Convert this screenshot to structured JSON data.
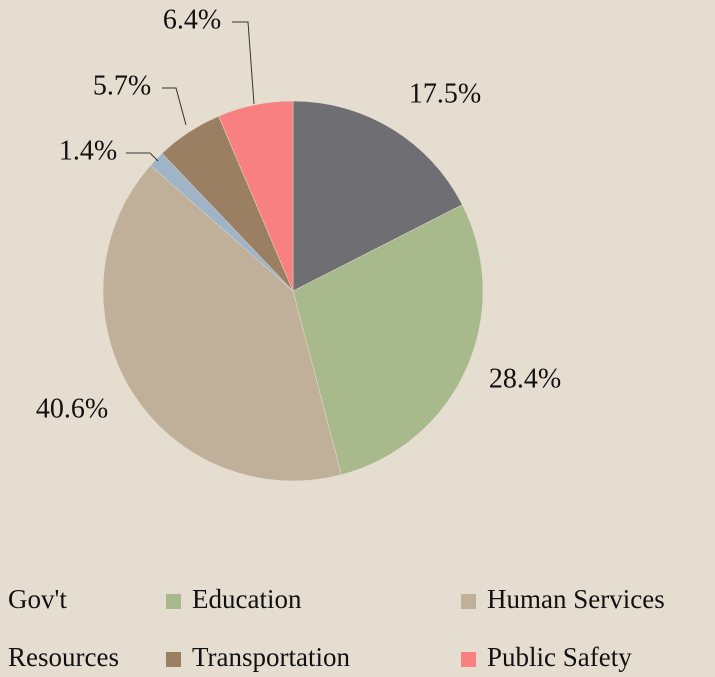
{
  "chart_data": {
    "type": "pie",
    "categories": [
      "Gov't",
      "Education",
      "Human Services",
      "Resources",
      "Transportation",
      "Public Safety"
    ],
    "values": [
      17.5,
      28.4,
      40.6,
      1.4,
      5.7,
      6.4
    ],
    "value_labels": [
      "17.5%",
      "28.4%",
      "40.6%",
      "1.4%",
      "5.7%",
      "6.4%"
    ],
    "colors": [
      "#6f6e73",
      "#a8b98c",
      "#c0b09a",
      "#9fb4c7",
      "#9b7f63",
      "#f88080"
    ]
  }
}
